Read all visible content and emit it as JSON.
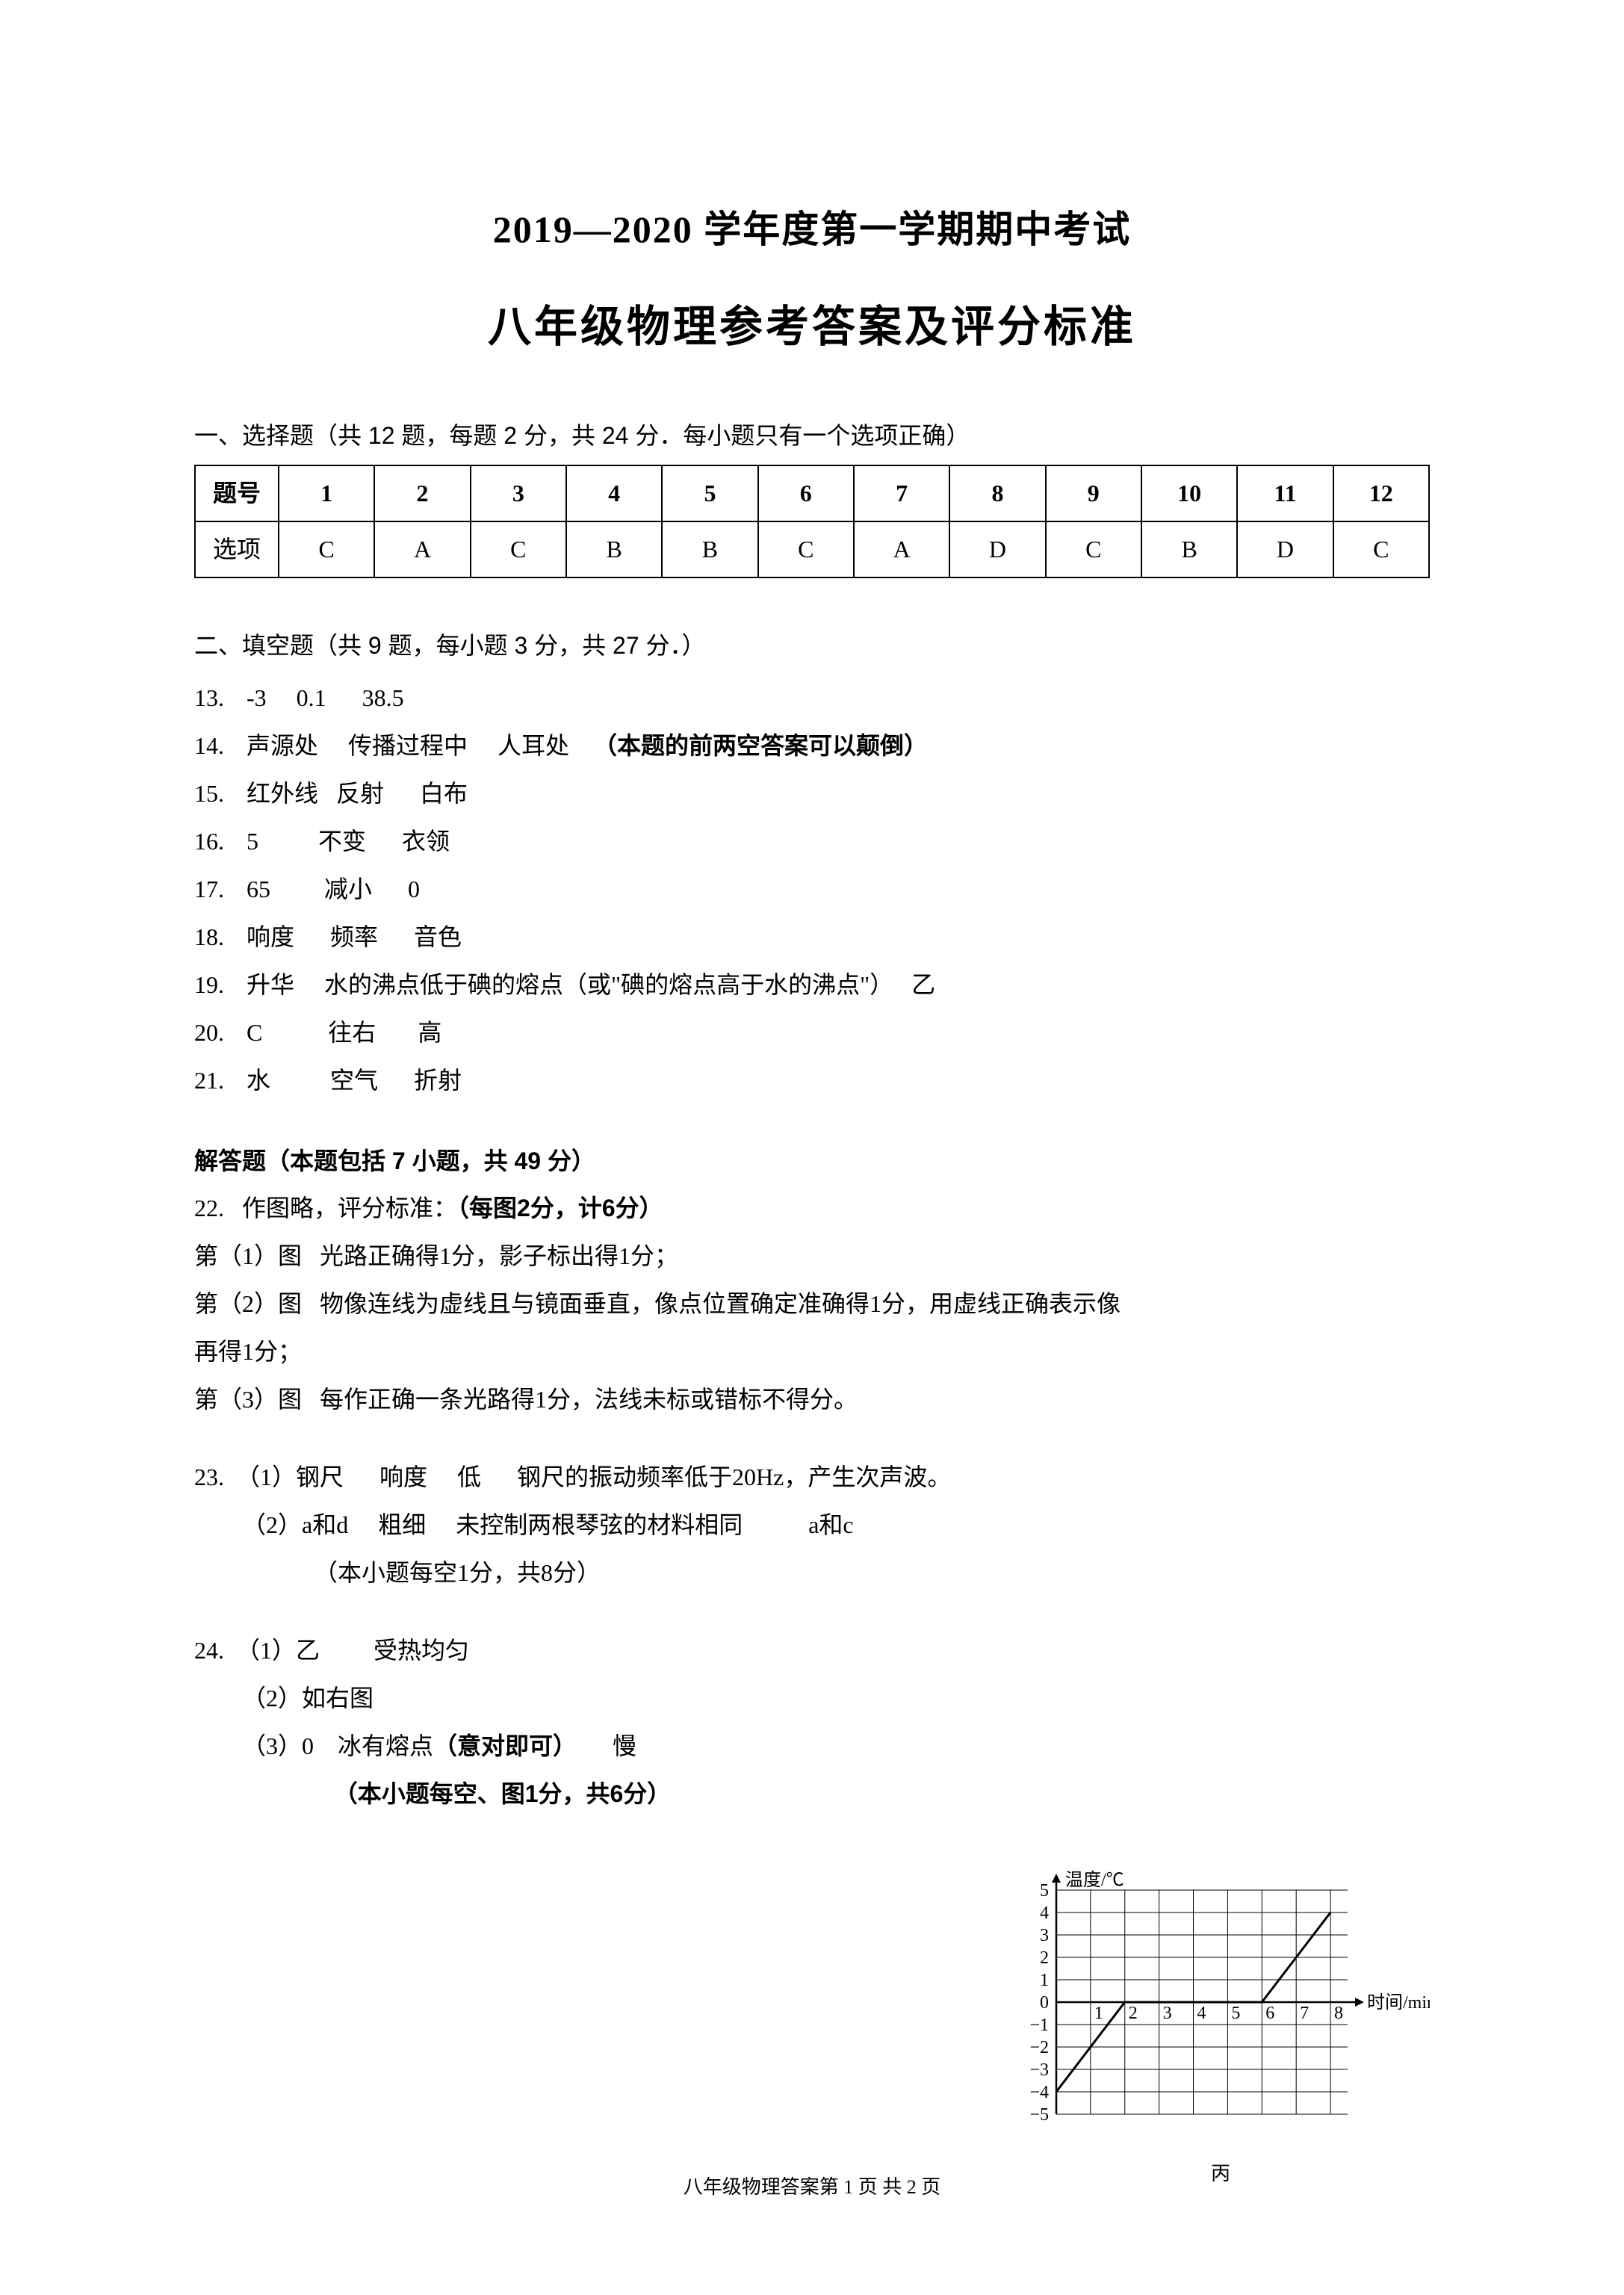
{
  "title1": "2019—2020 学年度第一学期期中考试",
  "title2": "八年级物理参考答案及评分标准",
  "section1_head": "一、选择题（共 12 题，每题 2 分，共 24 分．每小题只有一个选项正确）",
  "table": {
    "header_label": "题号",
    "row_label": "选项",
    "nums": [
      "1",
      "2",
      "3",
      "4",
      "5",
      "6",
      "7",
      "8",
      "9",
      "10",
      "11",
      "12"
    ],
    "answers": [
      "C",
      "A",
      "C",
      "B",
      "B",
      "C",
      "A",
      "D",
      "C",
      "B",
      "D",
      "C"
    ]
  },
  "section2_head": "二、填空题（共 9 题，每小题 3 分，共 27 分．）",
  "fills": [
    {
      "n": "13.",
      "text": "-3     0.1      38.5",
      "note": ""
    },
    {
      "n": "14.",
      "text": "声源处     传播过程中     人耳处    ",
      "note": "（本题的前两空答案可以颠倒）"
    },
    {
      "n": "15.",
      "text": "红外线   反射      白布",
      "note": ""
    },
    {
      "n": "16.",
      "text": "5          不变      衣领",
      "note": ""
    },
    {
      "n": "17.",
      "text": "65         减小      0",
      "note": ""
    },
    {
      "n": "18.",
      "text": "响度      频率      音色",
      "note": ""
    },
    {
      "n": "19.",
      "text": "升华     水的沸点低于碘的熔点（或\"碘的熔点高于水的沸点\"）   乙",
      "note": ""
    },
    {
      "n": "20.",
      "text": "C           往右       高",
      "note": ""
    },
    {
      "n": "21.",
      "text": "水          空气      折射",
      "note": ""
    }
  ],
  "section3_head": "解答题（本题包括 7 小题，共 49 分）",
  "q22": {
    "line1_a": "22.   作图略，评分标准：",
    "line1_b": "（每图2分，计6分）",
    "l2": "第（1）图   光路正确得1分，影子标出得1分；",
    "l3": "第（2）图   物像连线为虚线且与镜面垂直，像点位置确定准确得1分，用虚线正确表示像",
    "l4": "再得1分；",
    "l5": "第（3）图   每作正确一条光路得1分，法线未标或错标不得分。"
  },
  "q23": {
    "l1": "23.  （1）钢尺      响度     低      钢尺的振动频率低于20Hz，产生次声波。",
    "l2": "        （2）a和d     粗细     未控制两根琴弦的材料相同           a和c",
    "l3": "                    （本小题每空1分，共8分）"
  },
  "q24": {
    "l1": "24.  （1）乙         受热均匀",
    "l2": "        （2）如右图",
    "l3_a": "        （3）0    冰有熔点",
    "l3_b": "（意对即可）",
    "l3_c": "      慢",
    "l4": "                     （本小题每空、图1分，共6分）"
  },
  "chart": {
    "type": "line",
    "xlabel": "时间/min",
    "ylabel": "温度/℃",
    "xlim": [
      0,
      8.5
    ],
    "ylim": [
      -5,
      5
    ],
    "xticks": [
      1,
      2,
      3,
      4,
      5,
      6,
      7,
      8
    ],
    "yticks": [
      -5,
      -4,
      -3,
      -2,
      -1,
      0,
      1,
      2,
      3,
      4,
      5
    ],
    "grid_color": "#000000",
    "axis_color": "#000000",
    "line_color": "#000000",
    "line_width": 3,
    "background_color": "#ffffff",
    "points": [
      [
        0,
        -4
      ],
      [
        2,
        0
      ],
      [
        6,
        0
      ],
      [
        8,
        4
      ]
    ],
    "label_fontsize": 24,
    "caption": "丙"
  },
  "footer": "八年级物理答案第 1 页  共 2 页"
}
